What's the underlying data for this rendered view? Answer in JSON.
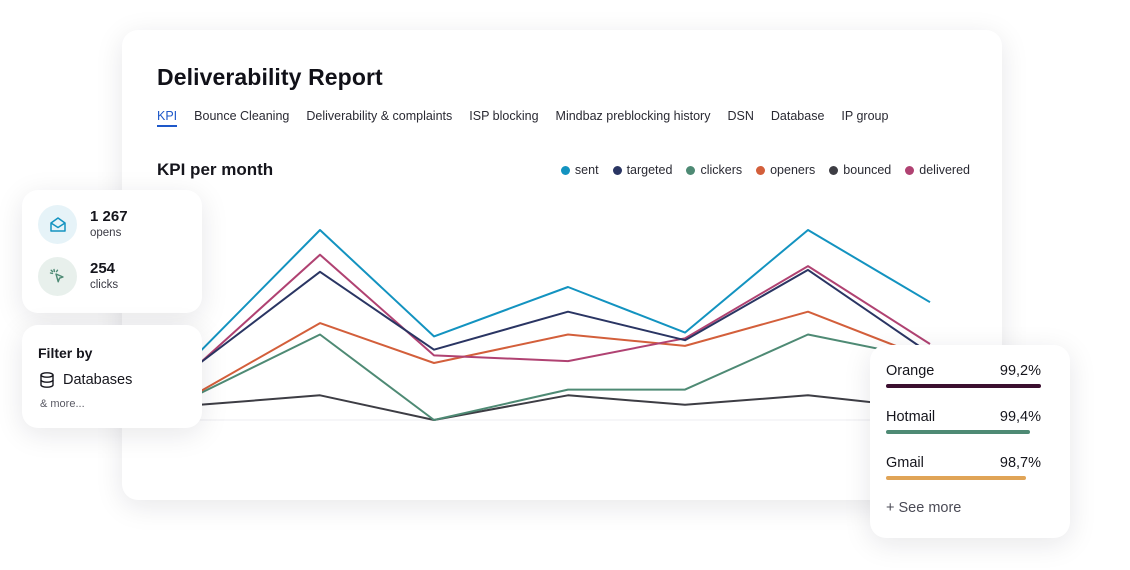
{
  "report": {
    "title": "Deliverability Report",
    "tabs": [
      {
        "label": "KPI",
        "active": true
      },
      {
        "label": "Bounce Cleaning",
        "active": false
      },
      {
        "label": "Deliverability & complaints",
        "active": false
      },
      {
        "label": "ISP blocking",
        "active": false
      },
      {
        "label": "Mindbaz preblocking history",
        "active": false
      },
      {
        "label": "DSN",
        "active": false
      },
      {
        "label": "Database",
        "active": false
      },
      {
        "label": "IP group",
        "active": false
      }
    ]
  },
  "chart_data": {
    "type": "line",
    "title": "KPI per month",
    "xlabel": "",
    "ylabel": "",
    "grid": false,
    "legend_position": "top-right",
    "x": [
      1,
      2,
      3,
      4,
      5,
      6,
      7
    ],
    "ylim": [
      0,
      100
    ],
    "series": [
      {
        "name": "sent",
        "color": "#1393c0",
        "values": [
          36,
          100,
          44,
          70,
          46,
          100,
          62
        ]
      },
      {
        "name": "targeted",
        "color": "#2a3563",
        "values": [
          30,
          78,
          37,
          57,
          42,
          79,
          35
        ]
      },
      {
        "name": "clickers",
        "color": "#4e8a74",
        "values": [
          14,
          45,
          0,
          16,
          16,
          45,
          32
        ]
      },
      {
        "name": "openers",
        "color": "#d35f3b",
        "values": [
          15,
          51,
          30,
          45,
          39,
          57,
          32
        ]
      },
      {
        "name": "bounced",
        "color": "#3d3d44",
        "values": [
          8,
          13,
          0,
          13,
          8,
          13,
          6
        ]
      },
      {
        "name": "delivered",
        "color": "#b04272",
        "values": [
          30,
          87,
          34,
          31,
          43,
          81,
          40
        ]
      }
    ]
  },
  "stats": [
    {
      "value": "1 267",
      "label": "opens",
      "icon": "envelope-open-icon",
      "icon_bg": "#e6f3f8",
      "icon_color": "#1393c0"
    },
    {
      "value": "254",
      "label": "clicks",
      "icon": "cursor-click-icon",
      "icon_bg": "#e8f0ec",
      "icon_color": "#4e8a74"
    }
  ],
  "filter": {
    "title": "Filter by",
    "option": "Databases",
    "option_icon": "database-icon",
    "more": "& more..."
  },
  "isp": {
    "rows": [
      {
        "name": "Orange",
        "value": "99,2%",
        "color": "#3b0f2f",
        "bar_fraction": 1.0
      },
      {
        "name": "Hotmail",
        "value": "99,4%",
        "color": "#4e8a74",
        "bar_fraction": 0.93
      },
      {
        "name": "Gmail",
        "value": "98,7%",
        "color": "#e0a457",
        "bar_fraction": 0.9
      }
    ],
    "see_more": "+ See more"
  }
}
